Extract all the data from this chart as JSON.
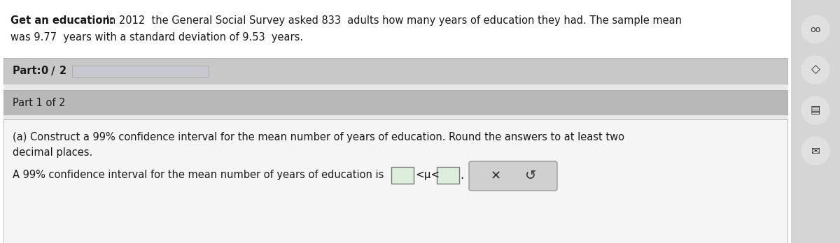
{
  "bold_text": "Get an education:",
  "line1_rest": " In 2012  the General Social Survey asked 833  adults how many years of education they had. The sample mean",
  "line2": "was 9.77  years with a standard deviation of 9.53  years.",
  "part_label_bold": "Part: 0 / 2",
  "part1_label": "Part 1 of 2",
  "part_a_line1": "(a) Construct a 99% confidence interval for the mean number of years of education. Round the answers to at least two",
  "part_a_line2": "decimal places.",
  "answer_line": "A 99% confidence interval for the mean number of years of education is",
  "mu_symbol": "<μ<",
  "bg_color": "#f0f0f0",
  "main_bg": "#ffffff",
  "part_panel_color": "#c8c8c8",
  "part1_panel_color": "#b8b8b8",
  "content_bg": "#f5f5f5",
  "side_panel_color": "#d5d5d5",
  "text_color": "#1a1a1a",
  "input_box_color": "#ddeedd",
  "btn_panel_color": "#d0d0d0",
  "progress_bar_color": "#c8c8d0",
  "border_color": "#a0a0a0"
}
